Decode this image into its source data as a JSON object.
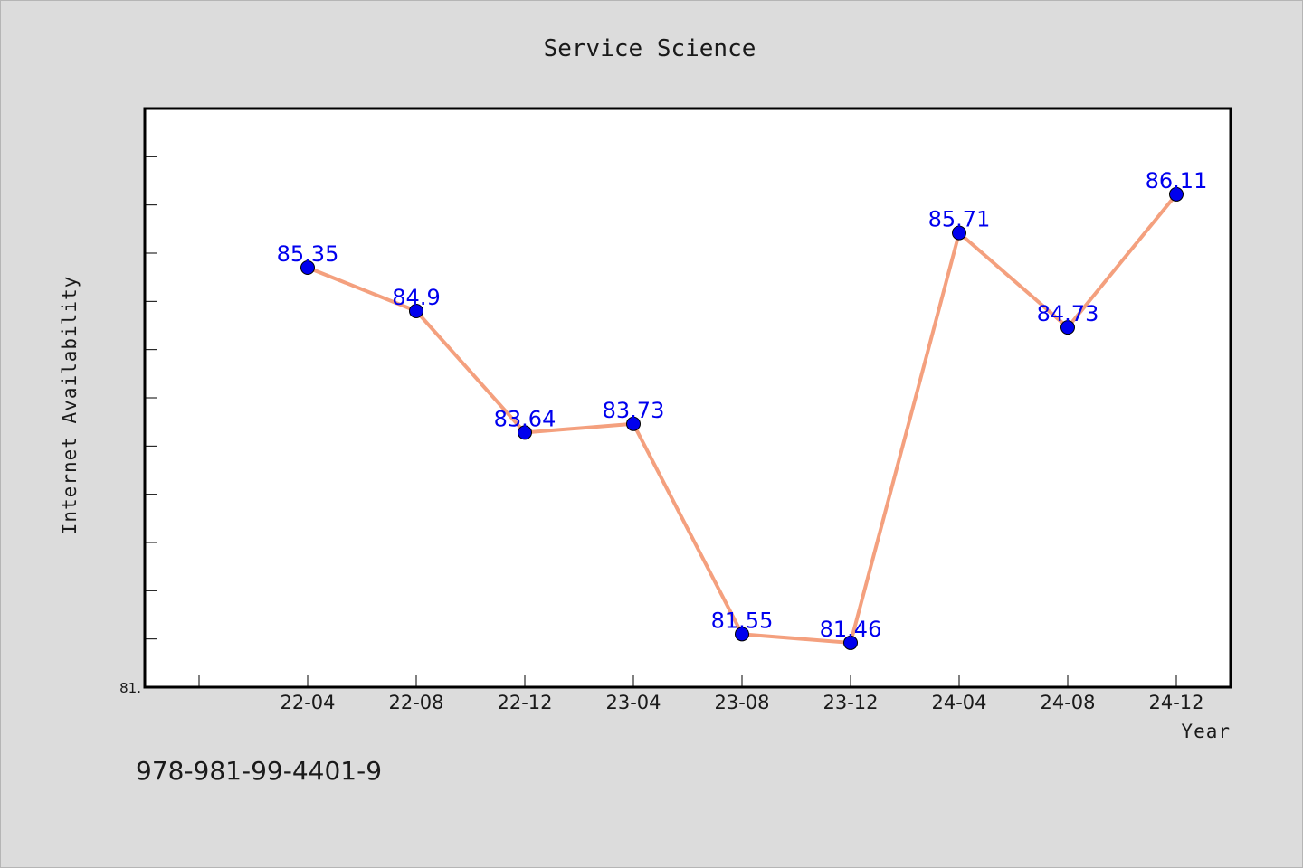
{
  "chart_data": {
    "type": "line",
    "title": "Service Science",
    "xlabel": "Year",
    "ylabel": "Internet Availability",
    "categories": [
      "22-04",
      "22-08",
      "22-12",
      "23-04",
      "23-08",
      "23-12",
      "24-04",
      "24-08",
      "24-12"
    ],
    "series": [
      {
        "values": [
          85.35,
          84.9,
          83.64,
          83.73,
          81.55,
          81.46,
          85.71,
          84.73,
          86.11
        ]
      }
    ],
    "data_labels": [
      "85.35",
      "84.9",
      "83.64",
      "83.73",
      "81.55",
      "81.46",
      "85.71",
      "84.73",
      "86.11"
    ],
    "ylim": [
      81.0,
      87.0
    ],
    "ytick_labels": [
      "81."
    ],
    "grid": false,
    "legend": "none",
    "colors": {
      "line": "#f4a07e",
      "marker": "#0000ee",
      "data_label": "#0000ee",
      "plot_background": "#ffffff",
      "figure_background": "#dcdcdc"
    }
  },
  "footer": {
    "isbn": "978-981-99-4401-9"
  }
}
